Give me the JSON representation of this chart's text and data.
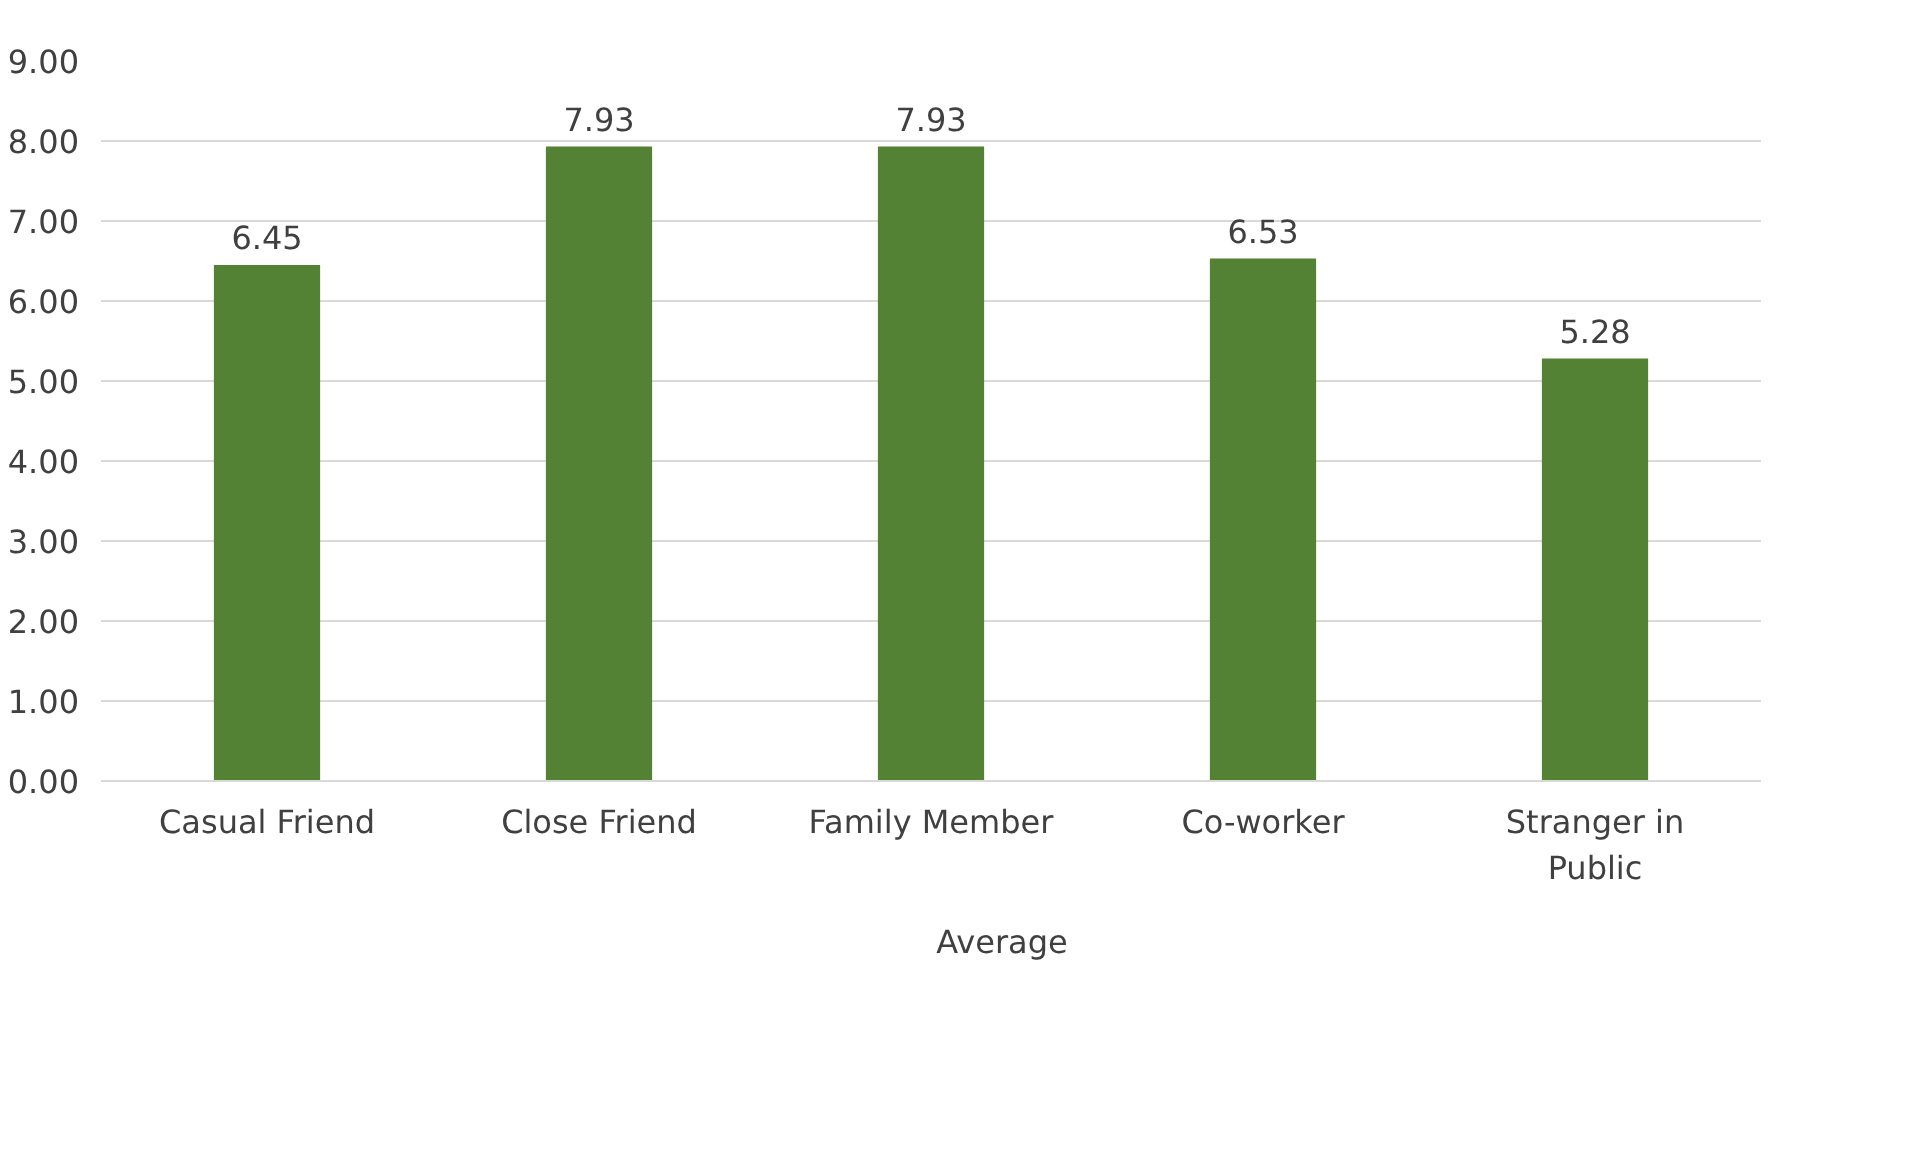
{
  "chart_data": {
    "type": "bar",
    "categories": [
      "Casual Friend",
      "Close Friend",
      "Family Member",
      "Co-worker",
      "Stranger in Public"
    ],
    "series": [
      {
        "name": "Average",
        "color": "#548235",
        "values": [
          6.45,
          7.93,
          7.93,
          6.53,
          5.28
        ]
      }
    ],
    "ylim": [
      0,
      9
    ],
    "yticks": [
      {
        "value": 0,
        "label": "0.00"
      },
      {
        "value": 1,
        "label": "1.00"
      },
      {
        "value": 2,
        "label": "2.00"
      },
      {
        "value": 3,
        "label": "3.00"
      },
      {
        "value": 4,
        "label": "4.00"
      },
      {
        "value": 5,
        "label": "5.00"
      },
      {
        "value": 6,
        "label": "6.00"
      },
      {
        "value": 7,
        "label": "7.00"
      },
      {
        "value": 8,
        "label": "8.00"
      },
      {
        "value": 9,
        "label": "9.00"
      }
    ],
    "grid": "y",
    "legend": "bottom",
    "data_labels": true
  }
}
